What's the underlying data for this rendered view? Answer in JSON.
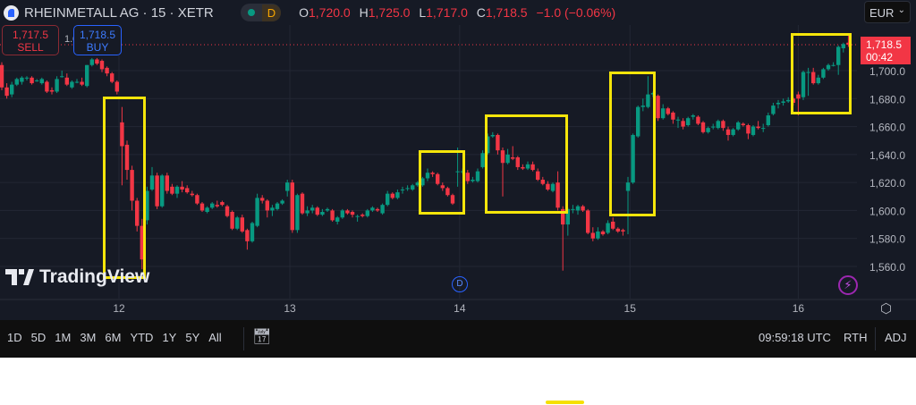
{
  "header": {
    "symbol": "RHEINMETALL AG · 15 · XETR",
    "status_badge": "D",
    "ohlc": {
      "o_label": "O",
      "o": "1,720.0",
      "h_label": "H",
      "h": "1,725.0",
      "l_label": "L",
      "l": "1,717.0",
      "c_label": "C",
      "c": "1,718.5",
      "change": "−1.0 (−0.06%)"
    }
  },
  "trade": {
    "sell_price": "1,717.5",
    "sell_label": "SELL",
    "qty": "1.0",
    "buy_price": "1,718.5",
    "buy_label": "BUY"
  },
  "currency": "EUR",
  "current_price": {
    "price": "1,718.5",
    "countdown": "00:42"
  },
  "watermark": "TradingView",
  "dividend_marker": "D",
  "bottom_bar": {
    "ranges": [
      "1D",
      "5D",
      "1M",
      "3M",
      "6M",
      "YTD",
      "1Y",
      "5Y",
      "All"
    ],
    "time": "09:59:18 UTC",
    "session": "RTH",
    "adjust": "ADJ"
  },
  "colors": {
    "up": "#089981",
    "down": "#f23645",
    "background": "#161a25",
    "annotation": "#f5e50a"
  },
  "chart_data": {
    "type": "candlestick",
    "interval": "15",
    "ylim": [
      1550,
      1730
    ],
    "y_ticks": [
      "1,560.0",
      "1,580.0",
      "1,600.0",
      "1,620.0",
      "1,640.0",
      "1,660.0",
      "1,680.0",
      "1,700.0"
    ],
    "y_tick_values": [
      1560,
      1580,
      1600,
      1620,
      1640,
      1660,
      1680,
      1700
    ],
    "x_ticks": [
      "12",
      "13",
      "14",
      "15",
      "16"
    ],
    "x_tick_index": [
      23.4,
      57.5,
      91.4,
      125.4,
      159
    ],
    "grid": true,
    "candles_ohlc": [
      [
        1704,
        1706,
        1686,
        1688
      ],
      [
        1688,
        1691,
        1680,
        1682
      ],
      [
        1683,
        1692,
        1681,
        1690
      ],
      [
        1690,
        1695,
        1689,
        1694
      ],
      [
        1692,
        1696,
        1690,
        1695
      ],
      [
        1695,
        1696,
        1693,
        1695
      ],
      [
        1695,
        1696,
        1690,
        1691
      ],
      [
        1693,
        1694,
        1692,
        1693
      ],
      [
        1691,
        1695,
        1690,
        1694
      ],
      [
        1692,
        1693,
        1684,
        1685
      ],
      [
        1686,
        1688,
        1683,
        1685
      ],
      [
        1685,
        1696,
        1684,
        1694
      ],
      [
        1696,
        1700,
        1695,
        1696
      ],
      [
        1695,
        1698,
        1689,
        1690
      ],
      [
        1688,
        1693,
        1687,
        1692
      ],
      [
        1692,
        1694,
        1691,
        1692
      ],
      [
        1692,
        1695,
        1689,
        1690
      ],
      [
        1689,
        1704,
        1688,
        1704
      ],
      [
        1704,
        1709,
        1703,
        1708
      ],
      [
        1708,
        1709,
        1704,
        1705
      ],
      [
        1707,
        1708,
        1699,
        1701
      ],
      [
        1702,
        1703,
        1696,
        1698
      ],
      [
        1698,
        1699,
        1691,
        1692
      ],
      [
        1692,
        1693,
        1683,
        1685
      ],
      [
        1663,
        1674,
        1618,
        1646
      ],
      [
        1647,
        1650,
        1622,
        1629
      ],
      [
        1629,
        1632,
        1600,
        1607
      ],
      [
        1607,
        1609,
        1585,
        1589
      ],
      [
        1589,
        1594,
        1558,
        1565
      ],
      [
        1593,
        1617,
        1590,
        1614
      ],
      [
        1615,
        1631,
        1614,
        1625
      ],
      [
        1625,
        1627,
        1601,
        1603
      ],
      [
        1603,
        1626,
        1602,
        1625
      ],
      [
        1625,
        1627,
        1612,
        1614
      ],
      [
        1617,
        1619,
        1611,
        1612
      ],
      [
        1612,
        1618,
        1609,
        1617
      ],
      [
        1617,
        1621,
        1613,
        1615
      ],
      [
        1616,
        1618,
        1612,
        1613
      ],
      [
        1612,
        1614,
        1610,
        1611
      ],
      [
        1611,
        1612,
        1604,
        1605
      ],
      [
        1605,
        1606,
        1599,
        1600
      ],
      [
        1599,
        1603,
        1598,
        1602
      ],
      [
        1602,
        1606,
        1601,
        1605
      ],
      [
        1604,
        1607,
        1602,
        1603
      ],
      [
        1606,
        1607,
        1603,
        1604
      ],
      [
        1603,
        1604,
        1595,
        1596
      ],
      [
        1599,
        1600,
        1586,
        1587
      ],
      [
        1587,
        1596,
        1586,
        1595
      ],
      [
        1595,
        1597,
        1584,
        1585
      ],
      [
        1586,
        1587,
        1572,
        1578
      ],
      [
        1578,
        1592,
        1577,
        1591
      ],
      [
        1589,
        1612,
        1588,
        1609
      ],
      [
        1609,
        1611,
        1605,
        1607
      ],
      [
        1607,
        1608,
        1595,
        1600
      ],
      [
        1600,
        1604,
        1596,
        1602
      ],
      [
        1601,
        1606,
        1600,
        1605
      ],
      [
        1605,
        1608,
        1604,
        1607
      ],
      [
        1614,
        1622,
        1610,
        1620
      ],
      [
        1620,
        1622,
        1584,
        1586
      ],
      [
        1586,
        1612,
        1584,
        1611
      ],
      [
        1612,
        1613,
        1597,
        1598
      ],
      [
        1598,
        1603,
        1596,
        1600
      ],
      [
        1600,
        1604,
        1598,
        1602
      ],
      [
        1602,
        1603,
        1596,
        1597
      ],
      [
        1597,
        1601,
        1596,
        1599
      ],
      [
        1600,
        1602,
        1599,
        1601
      ],
      [
        1600,
        1601,
        1592,
        1593
      ],
      [
        1592,
        1596,
        1590,
        1595
      ],
      [
        1595,
        1601,
        1594,
        1600
      ],
      [
        1600,
        1601,
        1597,
        1598
      ],
      [
        1599,
        1600,
        1595,
        1597
      ],
      [
        1596,
        1597,
        1592,
        1596
      ],
      [
        1597,
        1598,
        1595,
        1596
      ],
      [
        1596,
        1601,
        1595,
        1600
      ],
      [
        1600,
        1603,
        1599,
        1602
      ],
      [
        1601,
        1602,
        1599,
        1600
      ],
      [
        1598,
        1605,
        1597,
        1604
      ],
      [
        1604,
        1614,
        1603,
        1612
      ],
      [
        1612,
        1613,
        1608,
        1609
      ],
      [
        1609,
        1615,
        1608,
        1613
      ],
      [
        1615,
        1617,
        1612,
        1615
      ],
      [
        1616,
        1618,
        1614,
        1616
      ],
      [
        1615,
        1619,
        1614,
        1618
      ],
      [
        1618,
        1621,
        1617,
        1620
      ],
      [
        1618,
        1624,
        1617,
        1623
      ],
      [
        1623,
        1630,
        1621,
        1627
      ],
      [
        1627,
        1628,
        1624,
        1626
      ],
      [
        1626,
        1627,
        1618,
        1619
      ],
      [
        1618,
        1620,
        1614,
        1616
      ],
      [
        1616,
        1617,
        1610,
        1611
      ],
      [
        1611,
        1612,
        1604,
        1605
      ],
      [
        1628,
        1645,
        1617,
        1628
      ],
      [
        1628,
        1630,
        1626,
        1628
      ],
      [
        1627,
        1629,
        1619,
        1621
      ],
      [
        1621,
        1624,
        1620,
        1622
      ],
      [
        1621,
        1630,
        1620,
        1628
      ],
      [
        1631,
        1643,
        1630,
        1641
      ],
      [
        1641,
        1655,
        1640,
        1653
      ],
      [
        1653,
        1656,
        1652,
        1654
      ],
      [
        1654,
        1655,
        1640,
        1643
      ],
      [
        1643,
        1645,
        1610,
        1634
      ],
      [
        1634,
        1644,
        1633,
        1640
      ],
      [
        1638,
        1646,
        1636,
        1637
      ],
      [
        1638,
        1639,
        1629,
        1631
      ],
      [
        1631,
        1633,
        1629,
        1630
      ],
      [
        1630,
        1635,
        1629,
        1633
      ],
      [
        1633,
        1635,
        1628,
        1629
      ],
      [
        1628,
        1630,
        1621,
        1622
      ],
      [
        1622,
        1624,
        1618,
        1619
      ],
      [
        1619,
        1621,
        1614,
        1615
      ],
      [
        1614,
        1620,
        1613,
        1619
      ],
      [
        1620,
        1628,
        1600,
        1602
      ],
      [
        1601,
        1603,
        1557,
        1590
      ],
      [
        1590,
        1602,
        1582,
        1601
      ],
      [
        1601,
        1604,
        1598,
        1601
      ],
      [
        1600,
        1604,
        1597,
        1603
      ],
      [
        1603,
        1604,
        1599,
        1600
      ],
      [
        1600,
        1601,
        1583,
        1584
      ],
      [
        1584,
        1588,
        1578,
        1580
      ],
      [
        1580,
        1588,
        1579,
        1585
      ],
      [
        1585,
        1586,
        1582,
        1583
      ],
      [
        1584,
        1593,
        1583,
        1591
      ],
      [
        1592,
        1595,
        1586,
        1587
      ],
      [
        1587,
        1588,
        1584,
        1585
      ],
      [
        1586,
        1587,
        1582,
        1585
      ],
      [
        1614,
        1624,
        1583,
        1620
      ],
      [
        1620,
        1655,
        1619,
        1654
      ],
      [
        1653,
        1675,
        1652,
        1674
      ],
      [
        1674,
        1680,
        1671,
        1675
      ],
      [
        1674,
        1696,
        1673,
        1683
      ],
      [
        1683,
        1685,
        1681,
        1684
      ],
      [
        1682,
        1683,
        1664,
        1666
      ],
      [
        1666,
        1676,
        1665,
        1673
      ],
      [
        1673,
        1674,
        1668,
        1669
      ],
      [
        1670,
        1671,
        1662,
        1665
      ],
      [
        1665,
        1667,
        1659,
        1665
      ],
      [
        1664,
        1666,
        1658,
        1660
      ],
      [
        1661,
        1667,
        1660,
        1666
      ],
      [
        1667,
        1669,
        1665,
        1668
      ],
      [
        1667,
        1668,
        1661,
        1662
      ],
      [
        1663,
        1664,
        1655,
        1656
      ],
      [
        1656,
        1660,
        1655,
        1659
      ],
      [
        1660,
        1662,
        1658,
        1660
      ],
      [
        1659,
        1665,
        1658,
        1664
      ],
      [
        1664,
        1665,
        1657,
        1659
      ],
      [
        1658,
        1660,
        1650,
        1654
      ],
      [
        1654,
        1659,
        1653,
        1658
      ],
      [
        1658,
        1664,
        1657,
        1663
      ],
      [
        1662,
        1663,
        1660,
        1661
      ],
      [
        1661,
        1662,
        1651,
        1655
      ],
      [
        1654,
        1661,
        1653,
        1660
      ],
      [
        1660,
        1664,
        1658,
        1659
      ],
      [
        1659,
        1662,
        1656,
        1659
      ],
      [
        1661,
        1670,
        1660,
        1668
      ],
      [
        1669,
        1677,
        1668,
        1675
      ],
      [
        1676,
        1679,
        1673,
        1677
      ],
      [
        1677,
        1680,
        1675,
        1678
      ],
      [
        1678,
        1681,
        1677,
        1679
      ],
      [
        1680,
        1681,
        1675,
        1677
      ],
      [
        1683,
        1685,
        1668,
        1680
      ],
      [
        1681,
        1700,
        1679,
        1699
      ],
      [
        1699,
        1702,
        1682,
        1699
      ],
      [
        1699,
        1702,
        1690,
        1691
      ],
      [
        1691,
        1697,
        1690,
        1695
      ],
      [
        1695,
        1702,
        1694,
        1701
      ],
      [
        1701,
        1705,
        1700,
        1704
      ],
      [
        1704,
        1706,
        1703,
        1704
      ],
      [
        1704,
        1718,
        1697,
        1717
      ],
      [
        1716,
        1720,
        1713,
        1719
      ],
      [
        1720,
        1725,
        1717,
        1718.5
      ]
    ],
    "last_price": 1718.5
  }
}
